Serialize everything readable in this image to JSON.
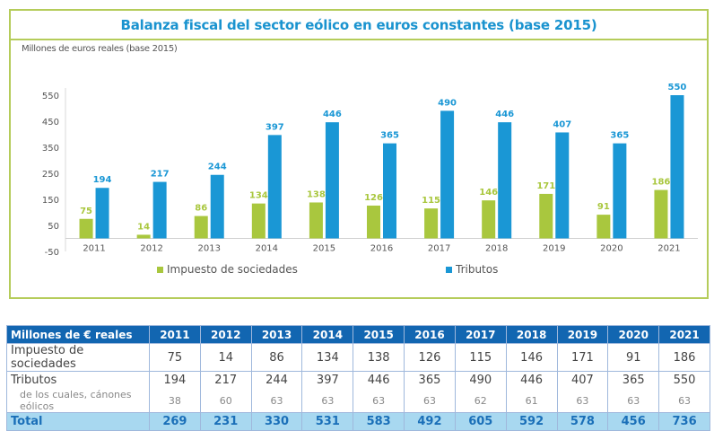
{
  "chart_data": {
    "type": "bar",
    "title": "Balanza fiscal del sector eólico en euros constantes (base 2015)",
    "ylabel": "Millones de euros reales (base 2015)",
    "xlabel": "",
    "ylim": [
      -50,
      550
    ],
    "yticks": [
      550,
      450,
      350,
      250,
      150,
      50,
      -50
    ],
    "grid": false,
    "legend_position": "bottom",
    "categories": [
      "2011",
      "2012",
      "2013",
      "2014",
      "2015",
      "2016",
      "2017",
      "2018",
      "2019",
      "2020",
      "2021"
    ],
    "series": [
      {
        "name": "Impuesto de sociedades",
        "color": "#a9c73e",
        "values": [
          75,
          14,
          86,
          134,
          138,
          126,
          115,
          146,
          171,
          91,
          186
        ]
      },
      {
        "name": "Tributos",
        "color": "#1a97d5",
        "values": [
          194,
          217,
          244,
          397,
          446,
          365,
          490,
          446,
          407,
          365,
          550
        ]
      }
    ]
  },
  "table": {
    "header": "Millones de € reales",
    "years": [
      "2011",
      "2012",
      "2013",
      "2014",
      "2015",
      "2016",
      "2017",
      "2018",
      "2019",
      "2020",
      "2021"
    ],
    "rows": [
      {
        "label": "Impuesto de sociedades",
        "values": [
          "75",
          "14",
          "86",
          "134",
          "138",
          "126",
          "115",
          "146",
          "171",
          "91",
          "186"
        ]
      },
      {
        "label": "Tributos",
        "values": [
          "194",
          "217",
          "244",
          "397",
          "446",
          "365",
          "490",
          "446",
          "407",
          "365",
          "550"
        ]
      },
      {
        "label": "de los cuales, cánones eólicos",
        "values": [
          "38",
          "60",
          "63",
          "63",
          "63",
          "63",
          "62",
          "61",
          "63",
          "63",
          "63"
        ]
      }
    ],
    "total": {
      "label": "Total",
      "values": [
        "269",
        "231",
        "330",
        "531",
        "583",
        "492",
        "605",
        "592",
        "578",
        "456",
        "736"
      ]
    }
  }
}
